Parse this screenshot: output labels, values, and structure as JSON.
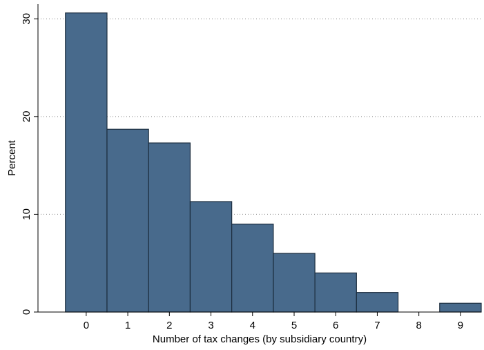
{
  "chart_data": {
    "type": "histogram",
    "x_label": "Number of tax changes (by subsidiary country)",
    "y_label": "Percent",
    "bins": [
      -0.5,
      0.5,
      1.5,
      2.5,
      3.5,
      4.5,
      5.5,
      6.5,
      7.5,
      8.5,
      9.5
    ],
    "values": [
      30.6,
      18.7,
      17.3,
      11.3,
      9.0,
      6.0,
      4.0,
      2.0,
      0,
      0.9
    ],
    "color": "#486a8c",
    "edge_color": "#1c2d3e",
    "xlim": [
      -1.16,
      9.5
    ],
    "ylim": [
      0,
      31.5
    ],
    "xticks": [
      0,
      1,
      2,
      3,
      4,
      5,
      6,
      7,
      8,
      9
    ],
    "yticks": [
      0,
      10,
      20,
      30
    ],
    "grid": true
  }
}
